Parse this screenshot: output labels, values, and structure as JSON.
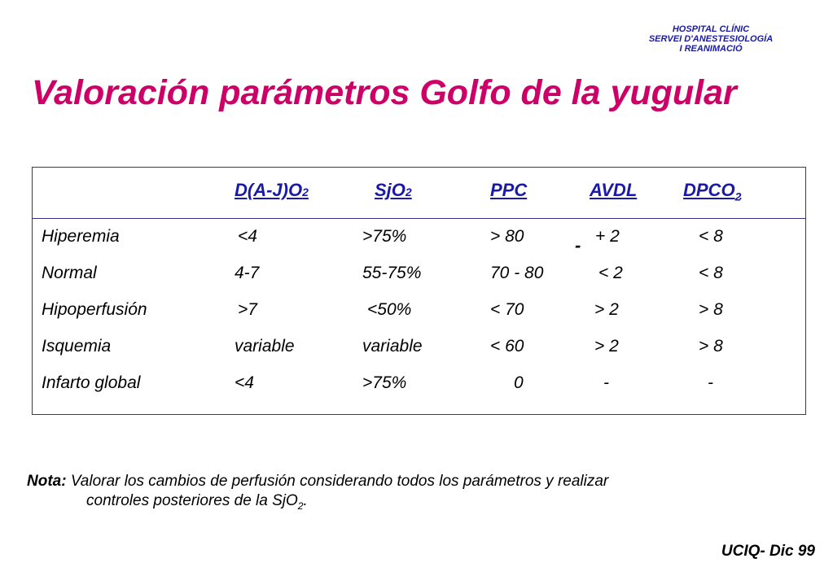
{
  "colors": {
    "title": "#cc0066",
    "org": "#1a1aa6",
    "table_header": "#1a1aa6",
    "table_border": "#3d2f86",
    "text": "#000000"
  },
  "org": {
    "line1": "HOSPITAL CLÍNIC",
    "line2": "SERVEI D'ANESTESIOLOGÍA",
    "line3": "I REANIMACIÓ"
  },
  "title": "Valoración parámetros Golfo de la yugular",
  "table": {
    "headers": [
      {
        "base": "D(A-J)O",
        "sub": "2"
      },
      {
        "base": "SjO",
        "sub": "2"
      },
      {
        "base": "PPC",
        "sub": ""
      },
      {
        "base": "AVDL",
        "sub": ""
      },
      {
        "base": "DPCO",
        "sub": "2"
      }
    ],
    "rows": [
      {
        "label": "Hiperemia",
        "values": [
          " <4",
          ">75%",
          "> 80",
          "+ 2",
          "< 8"
        ]
      },
      {
        "label": "Normal",
        "values": [
          "4-7",
          "55-75%",
          "70 - 80",
          "< 2",
          "< 8"
        ]
      },
      {
        "label": "Hipoperfusión",
        "values": [
          " >7",
          " <50%",
          "< 70",
          "> 2",
          "> 8"
        ]
      },
      {
        "label": "Isquemia",
        "values": [
          "variable",
          "variable",
          "< 60",
          "> 2",
          "> 8"
        ]
      },
      {
        "label": "Infarto global",
        "values": [
          "<4",
          ">75%",
          "0",
          "-",
          "-"
        ]
      }
    ],
    "stray_mark": "-"
  },
  "note": {
    "label": "Nota:",
    "text_line1": " Valorar los cambios de perfusión considerando todos los parámetros y realizar",
    "text_line2_prefix": "controles posteriores de la SjO",
    "text_line2_sub": "2",
    "text_line2_suffix": "."
  },
  "footer": "UCIQ- Dic 99"
}
